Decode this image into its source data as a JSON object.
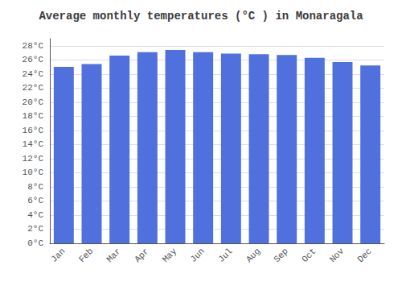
{
  "chart_data": {
    "type": "bar",
    "title": "Average monthly temperatures (°C ) in Monaragala",
    "categories": [
      "Jan",
      "Feb",
      "Mar",
      "Apr",
      "May",
      "Jun",
      "Jul",
      "Aug",
      "Sep",
      "Oct",
      "Nov",
      "Dec"
    ],
    "values": [
      25.0,
      25.4,
      26.6,
      27.1,
      27.4,
      27.1,
      26.9,
      26.8,
      26.7,
      26.3,
      25.7,
      25.2
    ],
    "ylim": [
      0,
      29
    ],
    "yticks": [
      {
        "value": 0,
        "label": "0°C"
      },
      {
        "value": 2,
        "label": "2°C"
      },
      {
        "value": 4,
        "label": "4°C"
      },
      {
        "value": 6,
        "label": "6°C"
      },
      {
        "value": 8,
        "label": "8°C"
      },
      {
        "value": 10,
        "label": "10°C"
      },
      {
        "value": 12,
        "label": "12°C"
      },
      {
        "value": 14,
        "label": "14°C"
      },
      {
        "value": 16,
        "label": "16°C"
      },
      {
        "value": 18,
        "label": "18°C"
      },
      {
        "value": 20,
        "label": "20°C"
      },
      {
        "value": 22,
        "label": "22°C"
      },
      {
        "value": 24,
        "label": "24°C"
      },
      {
        "value": 26,
        "label": "26°C"
      },
      {
        "value": 28,
        "label": "28°C"
      }
    ],
    "grid": true
  }
}
